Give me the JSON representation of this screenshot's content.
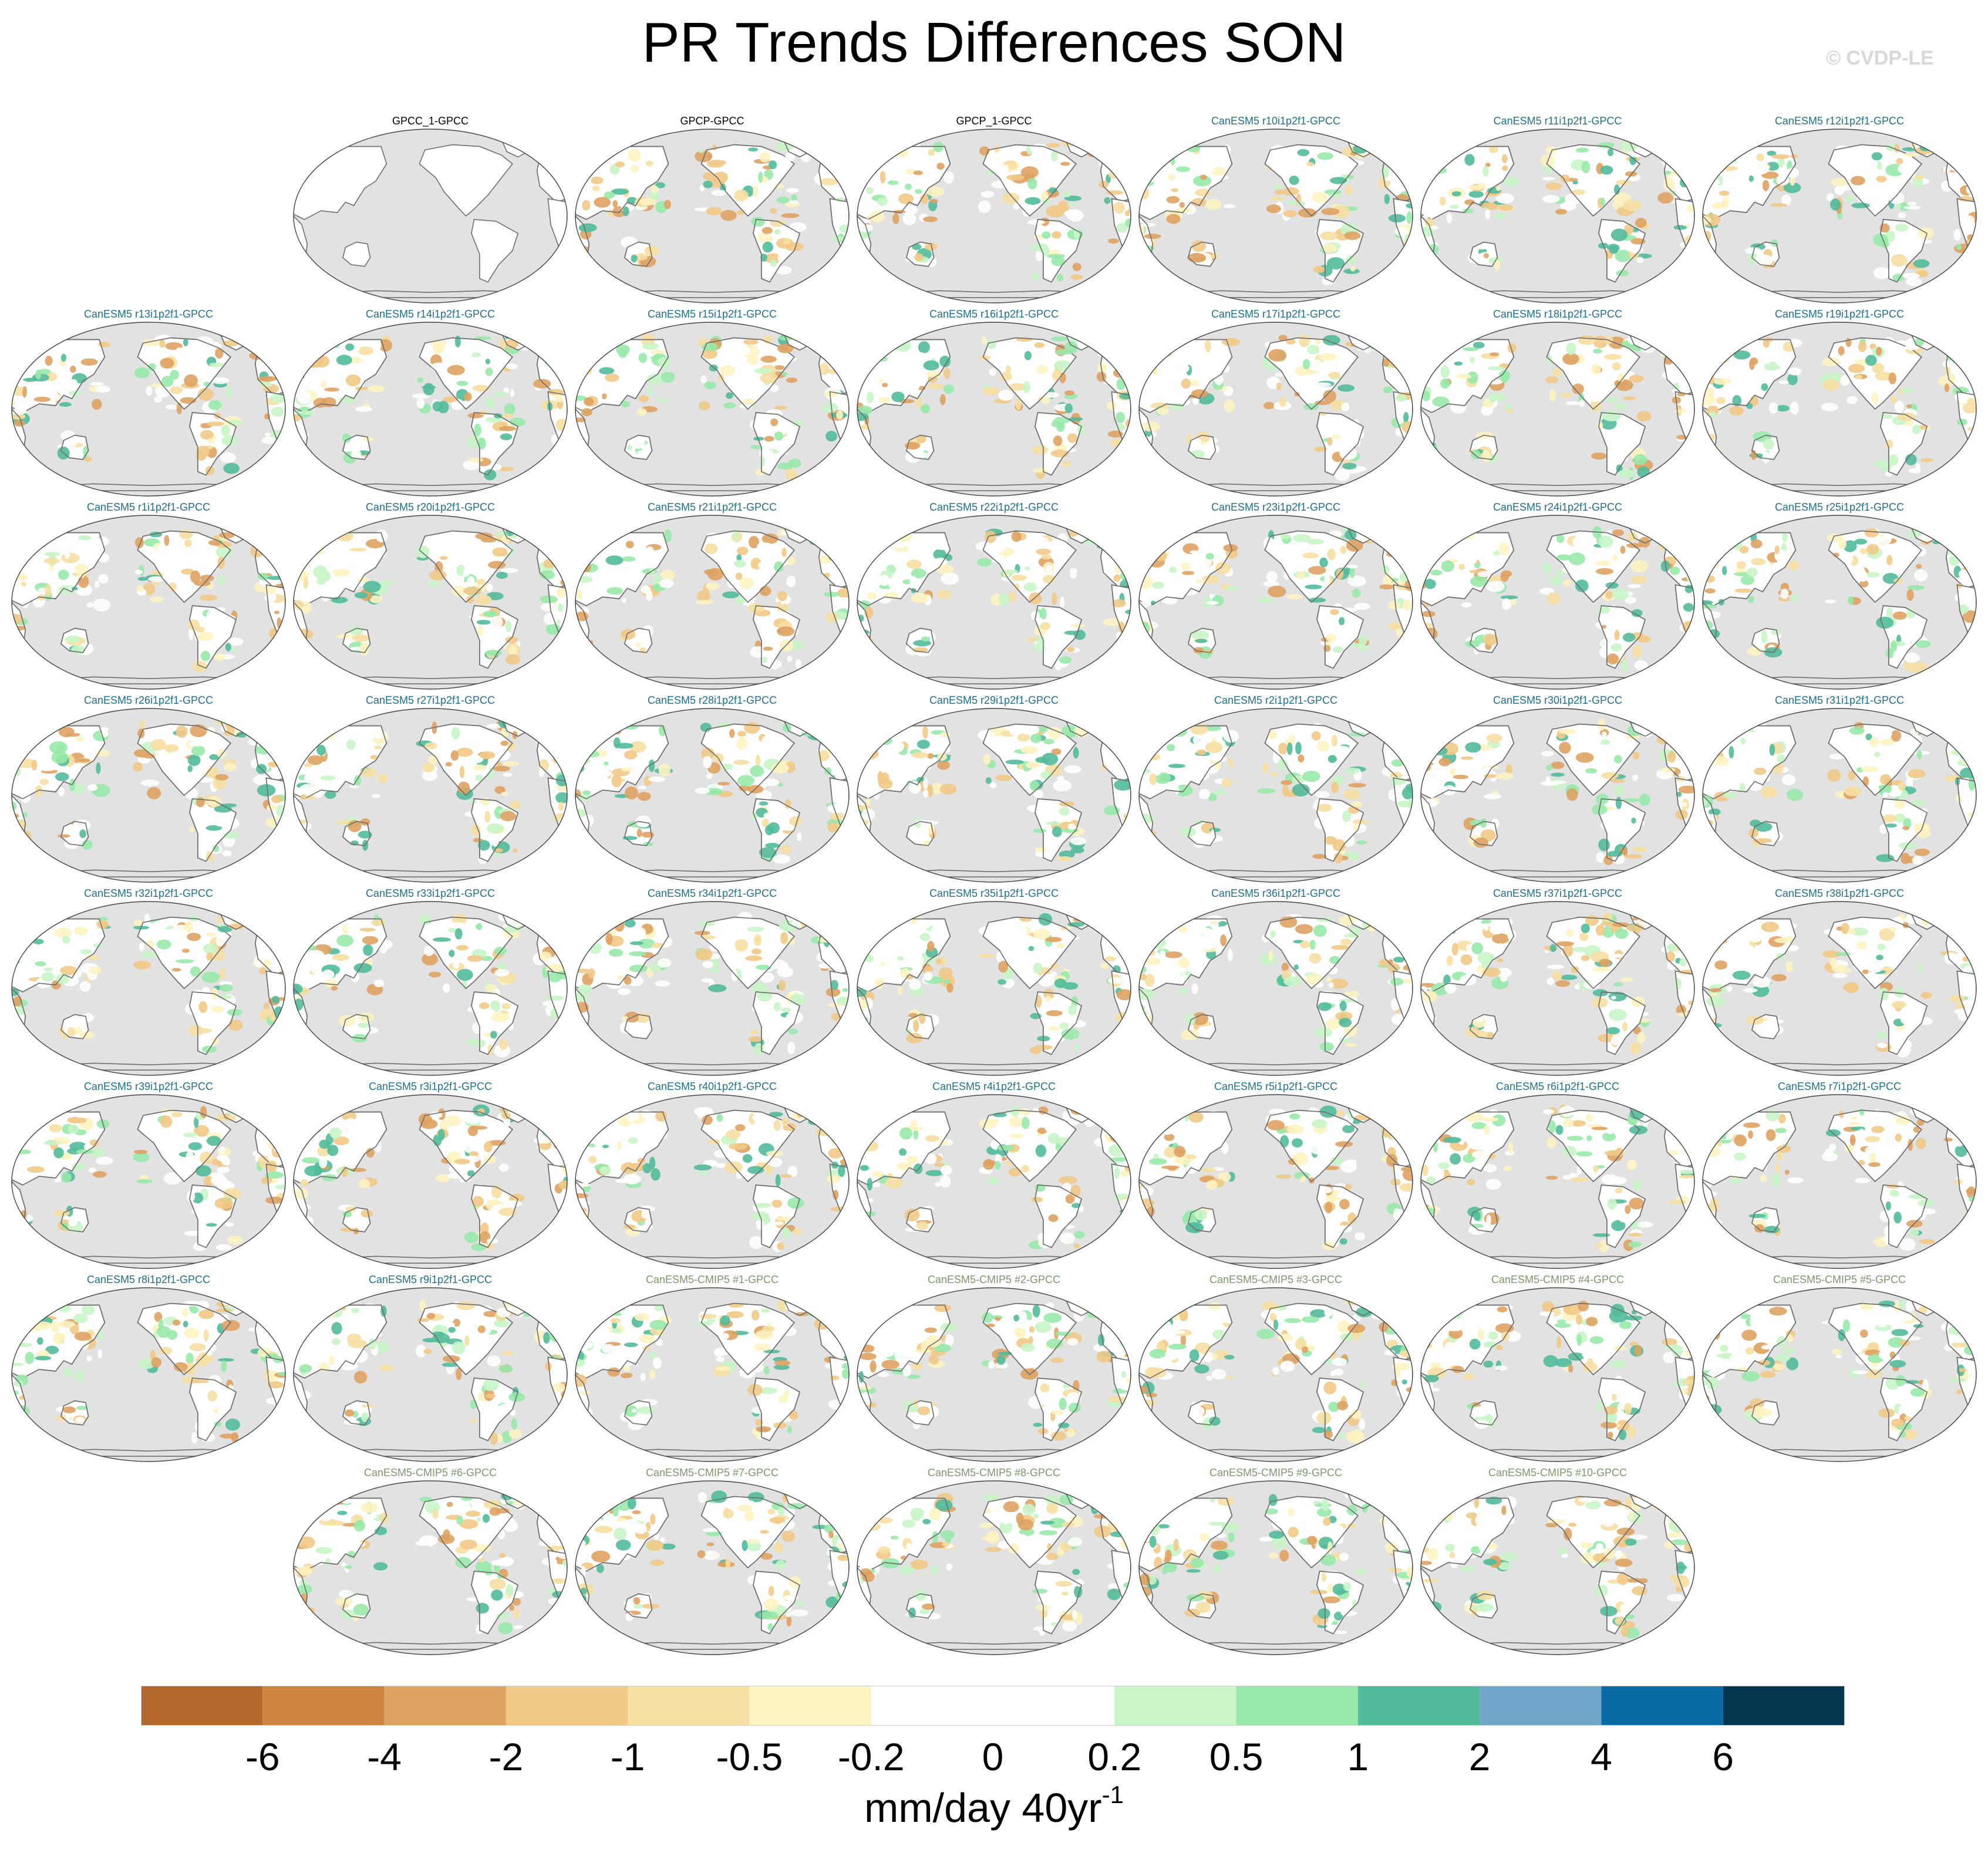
{
  "title": "PR Trends Differences SON",
  "copyright": "© CVDP-LE",
  "colors": {
    "ocean": "#e2e2e2",
    "coast": "#6e6e6e",
    "title_black": "#000000",
    "title_member": "#1f6f8f",
    "title_cmip5": "#7a9a6a"
  },
  "chart_data": {
    "type": "heatmap",
    "map_projection": "Robinson, Pacific-centred",
    "grid": "off",
    "variable": "PR trend differences",
    "season": "SON",
    "panels": [
      {
        "title": "GPCC_1-GPCC",
        "group": "obs"
      },
      {
        "title": "GPCP-GPCC",
        "group": "obs"
      },
      {
        "title": "GPCP_1-GPCC",
        "group": "obs"
      },
      {
        "title": "CanESM5 r10i1p2f1-GPCC",
        "group": "member"
      },
      {
        "title": "CanESM5 r11i1p2f1-GPCC",
        "group": "member"
      },
      {
        "title": "CanESM5 r12i1p2f1-GPCC",
        "group": "member"
      },
      {
        "title": "CanESM5 r13i1p2f1-GPCC",
        "group": "member"
      },
      {
        "title": "CanESM5 r14i1p2f1-GPCC",
        "group": "member"
      },
      {
        "title": "CanESM5 r15i1p2f1-GPCC",
        "group": "member"
      },
      {
        "title": "CanESM5 r16i1p2f1-GPCC",
        "group": "member"
      },
      {
        "title": "CanESM5 r17i1p2f1-GPCC",
        "group": "member"
      },
      {
        "title": "CanESM5 r18i1p2f1-GPCC",
        "group": "member"
      },
      {
        "title": "CanESM5 r19i1p2f1-GPCC",
        "group": "member"
      },
      {
        "title": "CanESM5 r1i1p2f1-GPCC",
        "group": "member"
      },
      {
        "title": "CanESM5 r20i1p2f1-GPCC",
        "group": "member"
      },
      {
        "title": "CanESM5 r21i1p2f1-GPCC",
        "group": "member"
      },
      {
        "title": "CanESM5 r22i1p2f1-GPCC",
        "group": "member"
      },
      {
        "title": "CanESM5 r23i1p2f1-GPCC",
        "group": "member"
      },
      {
        "title": "CanESM5 r24i1p2f1-GPCC",
        "group": "member"
      },
      {
        "title": "CanESM5 r25i1p2f1-GPCC",
        "group": "member"
      },
      {
        "title": "CanESM5 r26i1p2f1-GPCC",
        "group": "member"
      },
      {
        "title": "CanESM5 r27i1p2f1-GPCC",
        "group": "member"
      },
      {
        "title": "CanESM5 r28i1p2f1-GPCC",
        "group": "member"
      },
      {
        "title": "CanESM5 r29i1p2f1-GPCC",
        "group": "member"
      },
      {
        "title": "CanESM5 r2i1p2f1-GPCC",
        "group": "member"
      },
      {
        "title": "CanESM5 r30i1p2f1-GPCC",
        "group": "member"
      },
      {
        "title": "CanESM5 r31i1p2f1-GPCC",
        "group": "member"
      },
      {
        "title": "CanESM5 r32i1p2f1-GPCC",
        "group": "member"
      },
      {
        "title": "CanESM5 r33i1p2f1-GPCC",
        "group": "member"
      },
      {
        "title": "CanESM5 r34i1p2f1-GPCC",
        "group": "member"
      },
      {
        "title": "CanESM5 r35i1p2f1-GPCC",
        "group": "member"
      },
      {
        "title": "CanESM5 r36i1p2f1-GPCC",
        "group": "member"
      },
      {
        "title": "CanESM5 r37i1p2f1-GPCC",
        "group": "member"
      },
      {
        "title": "CanESM5 r38i1p2f1-GPCC",
        "group": "member"
      },
      {
        "title": "CanESM5 r39i1p2f1-GPCC",
        "group": "member"
      },
      {
        "title": "CanESM5 r3i1p2f1-GPCC",
        "group": "member"
      },
      {
        "title": "CanESM5 r40i1p2f1-GPCC",
        "group": "member"
      },
      {
        "title": "CanESM5 r4i1p2f1-GPCC",
        "group": "member"
      },
      {
        "title": "CanESM5 r5i1p2f1-GPCC",
        "group": "member"
      },
      {
        "title": "CanESM5 r6i1p2f1-GPCC",
        "group": "member"
      },
      {
        "title": "CanESM5 r7i1p2f1-GPCC",
        "group": "member"
      },
      {
        "title": "CanESM5 r8i1p2f1-GPCC",
        "group": "member"
      },
      {
        "title": "CanESM5 r9i1p2f1-GPCC",
        "group": "member"
      },
      {
        "title": "CanESM5-CMIP5 #1-GPCC",
        "group": "cmip5"
      },
      {
        "title": "CanESM5-CMIP5 #2-GPCC",
        "group": "cmip5"
      },
      {
        "title": "CanESM5-CMIP5 #3-GPCC",
        "group": "cmip5"
      },
      {
        "title": "CanESM5-CMIP5 #4-GPCC",
        "group": "cmip5"
      },
      {
        "title": "CanESM5-CMIP5 #5-GPCC",
        "group": "cmip5"
      },
      {
        "title": "CanESM5-CMIP5 #6-GPCC",
        "group": "cmip5"
      },
      {
        "title": "CanESM5-CMIP5 #7-GPCC",
        "group": "cmip5"
      },
      {
        "title": "CanESM5-CMIP5 #8-GPCC",
        "group": "cmip5"
      },
      {
        "title": "CanESM5-CMIP5 #9-GPCC",
        "group": "cmip5"
      },
      {
        "title": "CanESM5-CMIP5 #10-GPCC",
        "group": "cmip5"
      }
    ],
    "colorbar": {
      "ticks": [
        "-6",
        "-4",
        "-2",
        "-1",
        "-0.5",
        "-0.2",
        "0",
        "0.2",
        "0.5",
        "1",
        "2",
        "4",
        "6"
      ],
      "colors": [
        "#b5682c",
        "#cd853f",
        "#dea262",
        "#f1c987",
        "#f6dfa2",
        "#fdf3c2",
        "#ffffff",
        "#ffffff",
        "#c9f5c8",
        "#98e9aa",
        "#52bb9b",
        "#70a7c9",
        "#0a6aa4",
        "#02374f"
      ],
      "units_main": "mm/day 40yr",
      "units_sup": "-1"
    }
  }
}
